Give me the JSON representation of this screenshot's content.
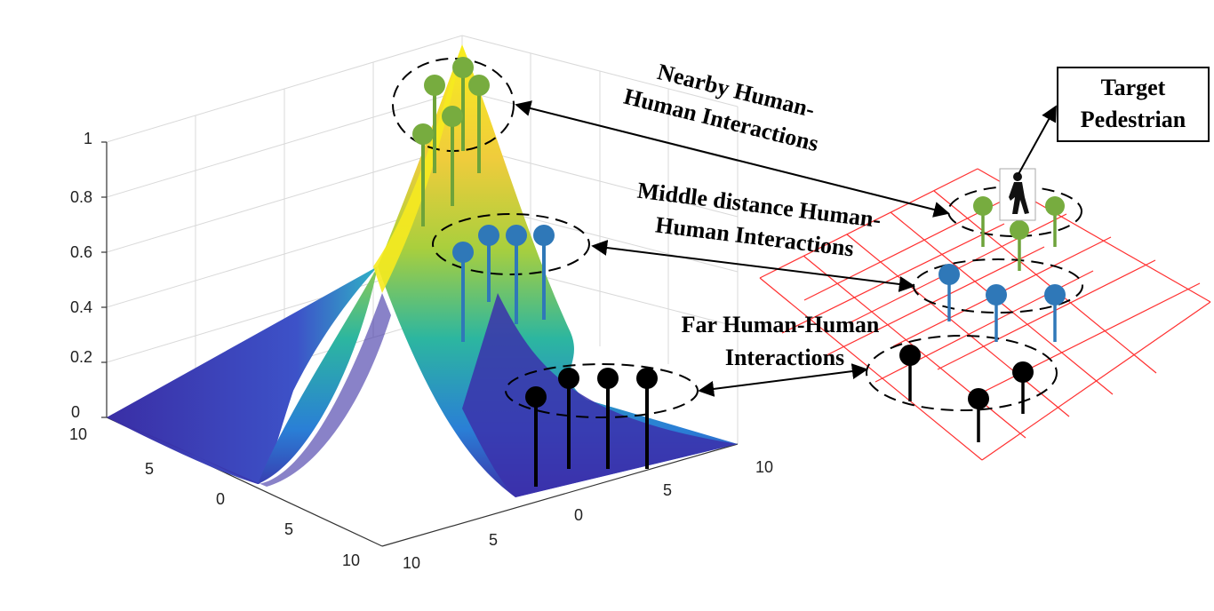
{
  "plot": {
    "z_ticks": [
      "0",
      "0.2",
      "0.4",
      "0.6",
      "0.8",
      "1"
    ],
    "x_ticks": [
      "10",
      "5",
      "0",
      "5",
      "10"
    ],
    "y_ticks": [
      "10",
      "5",
      "0",
      "5",
      "10"
    ]
  },
  "annotations": {
    "nearby": [
      "Nearby Human-",
      "Human Interactions"
    ],
    "middle": [
      "Middle distance Human-",
      "Human Interactions"
    ],
    "far": [
      "Far Human-Human",
      "Interactions"
    ],
    "target": [
      "Target",
      "Pedestrian"
    ]
  },
  "colors": {
    "near": "#77ac3f",
    "near_stem": "#6ea33a",
    "middle": "#2f78b8",
    "far": "#000000",
    "grid": "#ff3030",
    "surface_low": "#3b2fa8",
    "surface_high": "#f7ea1a"
  },
  "icons": [
    "pedestrian-icon"
  ]
}
